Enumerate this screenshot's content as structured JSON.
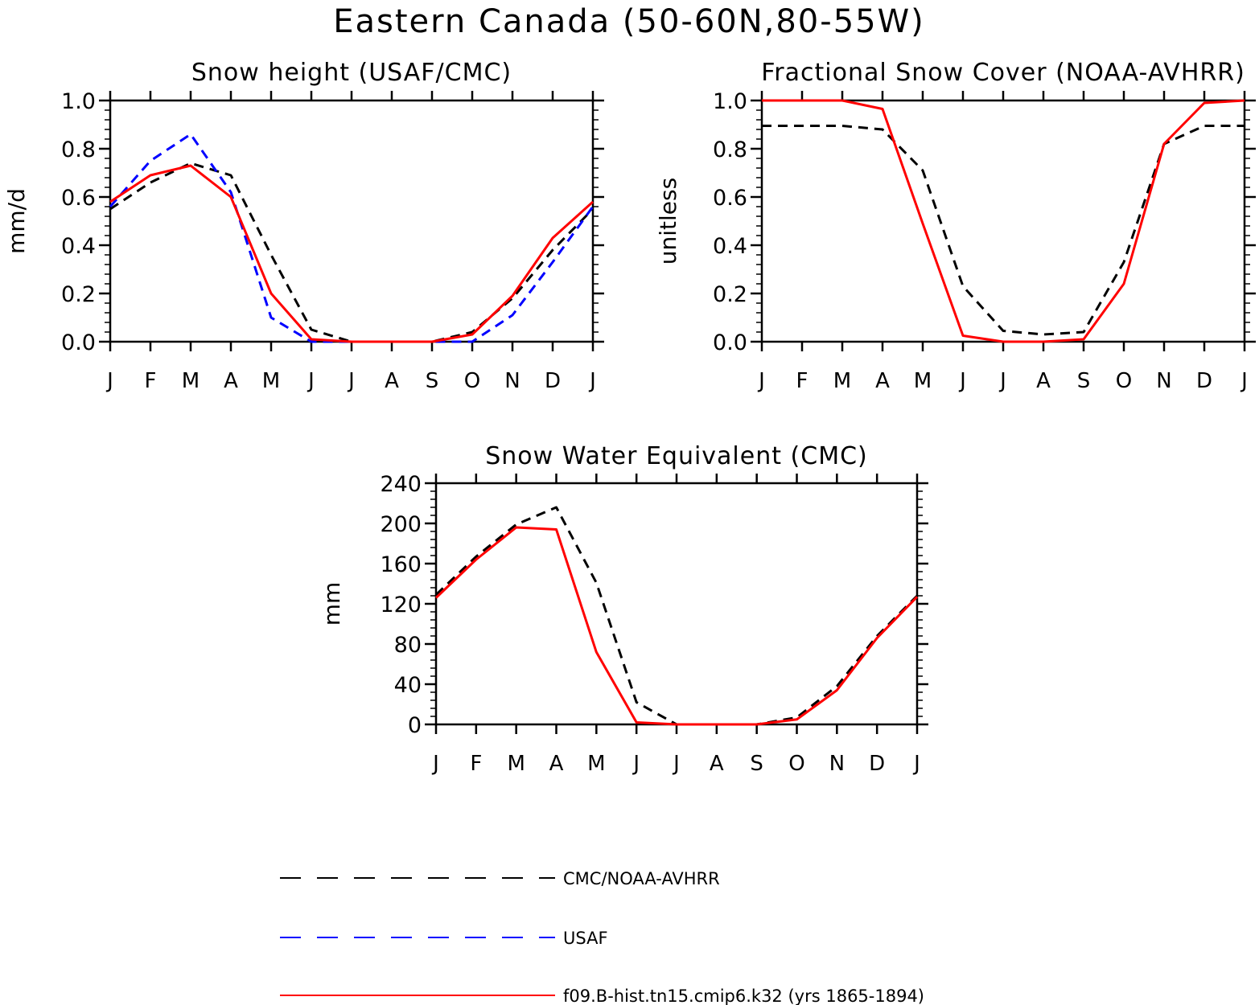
{
  "figure": {
    "title": "Eastern Canada (50-60N,80-55W)"
  },
  "chart_data": [
    {
      "type": "line",
      "title": "Snow height (USAF/CMC)",
      "xlabel": "",
      "ylabel": "mm/d",
      "categories": [
        "J",
        "F",
        "M",
        "A",
        "M",
        "J",
        "J",
        "A",
        "S",
        "O",
        "N",
        "D",
        "J"
      ],
      "ylim": [
        0,
        1.0
      ],
      "yticks": [
        "0.0",
        "0.2",
        "0.4",
        "0.6",
        "0.8",
        "1.0"
      ],
      "ytick_values": [
        0,
        0.2,
        0.4,
        0.6,
        0.8,
        1.0
      ],
      "grid": false,
      "series": [
        {
          "name": "CMC/NOAA-AVHRR",
          "color": "#000000",
          "dash": "dashed",
          "values": [
            0.55,
            0.66,
            0.74,
            0.69,
            0.36,
            0.05,
            0.0,
            0.0,
            0.0,
            0.04,
            0.18,
            0.38,
            0.55
          ]
        },
        {
          "name": "USAF",
          "color": "#0000ff",
          "dash": "dashed",
          "values": [
            0.56,
            0.75,
            0.86,
            0.62,
            0.1,
            0.0,
            0.0,
            0.0,
            0.0,
            0.0,
            0.11,
            0.33,
            0.56
          ]
        },
        {
          "name": "f09.B-hist.tn15.cmip6.k32 (yrs 1865-1894)",
          "color": "#ff0000",
          "dash": "solid",
          "values": [
            0.58,
            0.69,
            0.73,
            0.6,
            0.2,
            0.01,
            0.0,
            0.0,
            0.0,
            0.03,
            0.19,
            0.43,
            0.58
          ]
        }
      ]
    },
    {
      "type": "line",
      "title": "Fractional Snow Cover (NOAA-AVHRR)",
      "xlabel": "",
      "ylabel": "unitless",
      "categories": [
        "J",
        "F",
        "M",
        "A",
        "M",
        "J",
        "J",
        "A",
        "S",
        "O",
        "N",
        "D",
        "J"
      ],
      "ylim": [
        0,
        1.0
      ],
      "yticks": [
        "0.0",
        "0.2",
        "0.4",
        "0.6",
        "0.8",
        "1.0"
      ],
      "ytick_values": [
        0,
        0.2,
        0.4,
        0.6,
        0.8,
        1.0
      ],
      "grid": false,
      "series": [
        {
          "name": "CMC/NOAA-AVHRR",
          "color": "#000000",
          "dash": "dashed",
          "values": [
            0.895,
            0.895,
            0.895,
            0.88,
            0.71,
            0.23,
            0.045,
            0.03,
            0.04,
            0.33,
            0.82,
            0.895,
            0.895
          ]
        },
        {
          "name": "f09.B-hist.tn15.cmip6.k32 (yrs 1865-1894)",
          "color": "#ff0000",
          "dash": "solid",
          "values": [
            1.0,
            1.0,
            1.0,
            0.965,
            0.49,
            0.025,
            0.0,
            0.0,
            0.01,
            0.24,
            0.82,
            0.99,
            1.0
          ]
        }
      ]
    },
    {
      "type": "line",
      "title": "Snow Water Equivalent (CMC)",
      "xlabel": "",
      "ylabel": "mm",
      "categories": [
        "J",
        "F",
        "M",
        "A",
        "M",
        "J",
        "J",
        "A",
        "S",
        "O",
        "N",
        "D",
        "J"
      ],
      "ylim": [
        0,
        240
      ],
      "yticks": [
        "0",
        "40",
        "80",
        "120",
        "160",
        "200",
        "240"
      ],
      "ytick_values": [
        0,
        40,
        80,
        120,
        160,
        200,
        240
      ],
      "grid": false,
      "series": [
        {
          "name": "CMC/NOAA-AVHRR",
          "color": "#000000",
          "dash": "dashed",
          "values": [
            129,
            167,
            199,
            216,
            141,
            22,
            0,
            0,
            0,
            7,
            38,
            88,
            128
          ]
        },
        {
          "name": "f09.B-hist.tn15.cmip6.k32 (yrs 1865-1894)",
          "color": "#ff0000",
          "dash": "solid",
          "values": [
            126,
            164,
            196,
            194,
            72,
            2,
            0,
            0,
            0,
            5,
            34,
            86,
            127
          ]
        }
      ]
    }
  ],
  "legend": {
    "placement": "bottom",
    "items": [
      {
        "label": "CMC/NOAA-AVHRR",
        "color": "#000000",
        "dash": "long-dashed"
      },
      {
        "label": "USAF",
        "color": "#0000ff",
        "dash": "long-dashed"
      },
      {
        "label": "f09.B-hist.tn15.cmip6.k32 (yrs 1865-1894)",
        "color": "#ff0000",
        "dash": "solid"
      }
    ]
  }
}
